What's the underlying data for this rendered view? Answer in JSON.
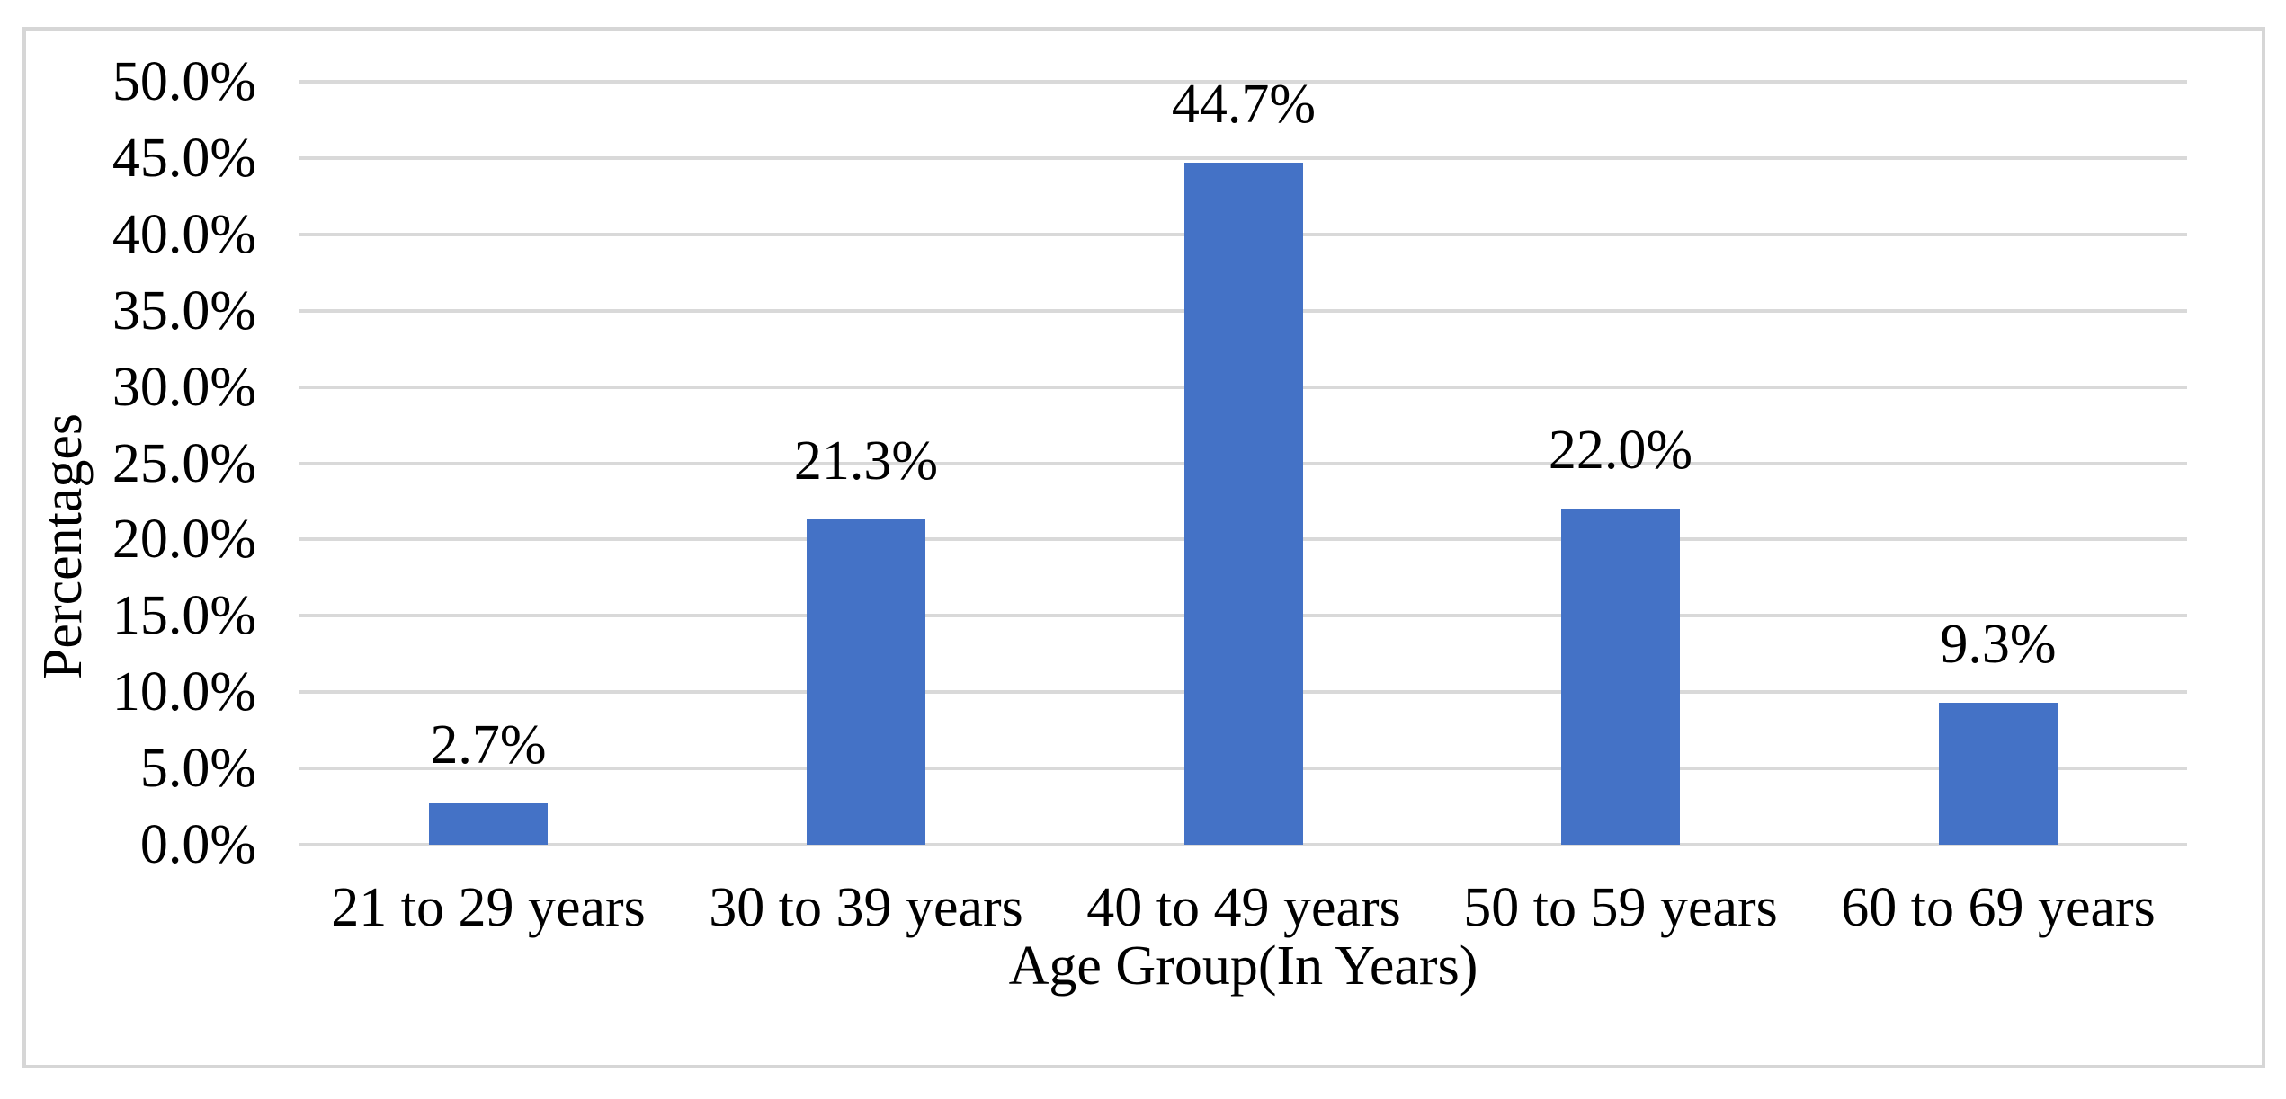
{
  "chart_data": {
    "type": "bar",
    "categories": [
      "21 to 29 years",
      "30 to 39 years",
      "40 to 49 years",
      "50 to 59 years",
      "60 to 69 years"
    ],
    "values": [
      2.7,
      21.3,
      44.7,
      22.0,
      9.3
    ],
    "value_labels": [
      "2.7%",
      "21.3%",
      "44.7%",
      "22.0%",
      "9.3%"
    ],
    "title": "",
    "xlabel": "Age Group(In Years)",
    "ylabel": "Percentages",
    "ylim": [
      0,
      50
    ],
    "ytick_step": 5,
    "ytick_labels": [
      "0.0%",
      "5.0%",
      "10.0%",
      "15.0%",
      "20.0%",
      "25.0%",
      "30.0%",
      "35.0%",
      "40.0%",
      "45.0%",
      "50.0%"
    ],
    "grid": true,
    "legend": "none",
    "bar_color": "#4472c6",
    "gridline_color": "#d9d9d9",
    "frame_color": "#d6d6d6",
    "text_color": "#000000"
  }
}
